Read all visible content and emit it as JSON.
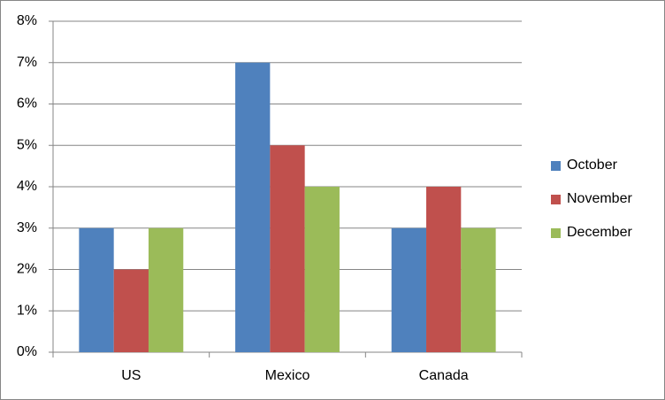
{
  "chart_data": {
    "type": "bar",
    "categories": [
      "US",
      "Mexico",
      "Canada"
    ],
    "series": [
      {
        "name": "October",
        "color": "#4f81bd",
        "values": [
          3,
          7,
          3
        ]
      },
      {
        "name": "November",
        "color": "#c0504d",
        "values": [
          2,
          5,
          4
        ]
      },
      {
        "name": "December",
        "color": "#9bbb59",
        "values": [
          3,
          4,
          3
        ]
      }
    ],
    "ylim": [
      0,
      8
    ],
    "yticks": [
      {
        "value": 0,
        "label": "0%"
      },
      {
        "value": 1,
        "label": "1%"
      },
      {
        "value": 2,
        "label": "2%"
      },
      {
        "value": 3,
        "label": "3%"
      },
      {
        "value": 4,
        "label": "4%"
      },
      {
        "value": 5,
        "label": "5%"
      },
      {
        "value": 6,
        "label": "6%"
      },
      {
        "value": 7,
        "label": "7%"
      },
      {
        "value": 8,
        "label": "8%"
      }
    ],
    "grid": true,
    "legend": "right"
  }
}
